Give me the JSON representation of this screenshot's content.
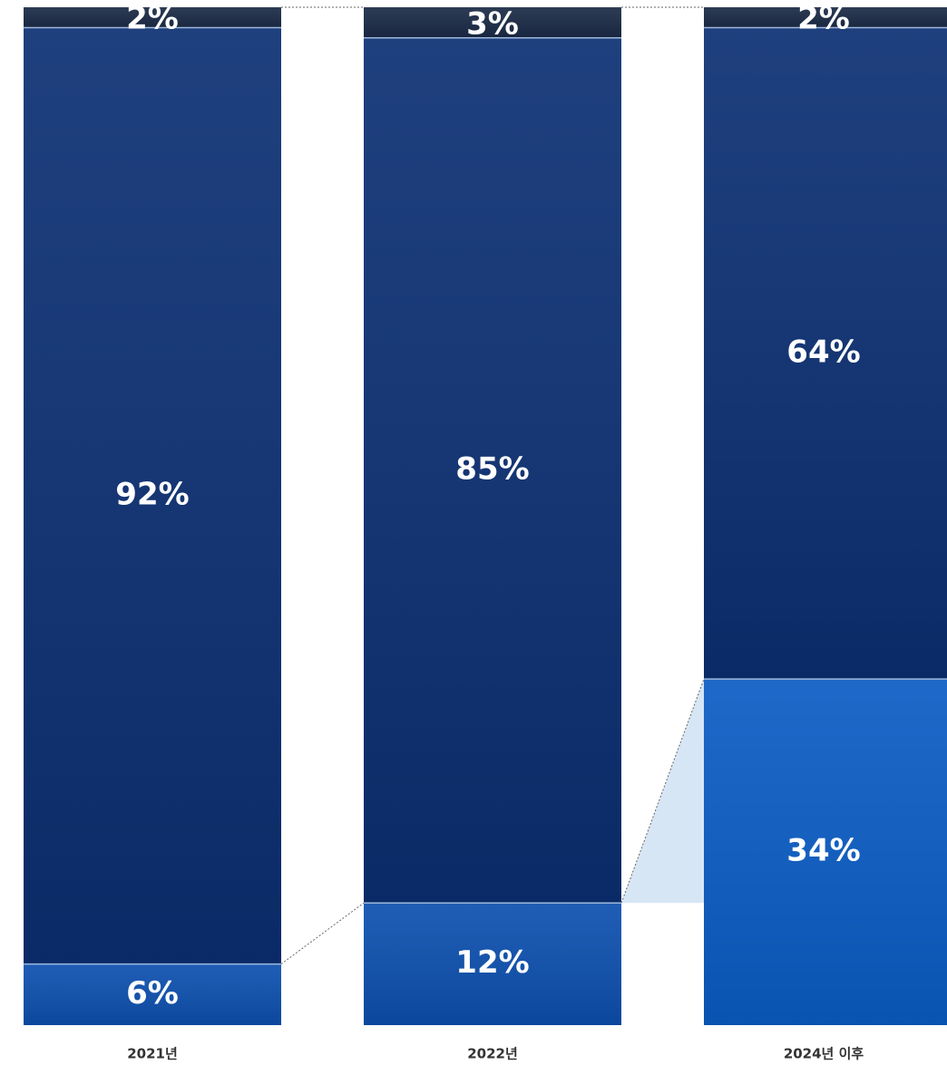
{
  "chart_data": {
    "type": "stacked-bar",
    "categories": [
      "2021년",
      "2022년",
      "2024년 이후"
    ],
    "series": [
      {
        "color": "#0c4fae",
        "values": [
          6,
          12,
          34
        ],
        "value_labels": [
          "6%",
          "12%",
          "34%"
        ]
      },
      {
        "color": "#0b2f72",
        "values": [
          92,
          85,
          64
        ],
        "value_labels": [
          "92%",
          "85%",
          "64%"
        ]
      },
      {
        "color": "#1a2a45",
        "values": [
          2,
          3,
          2
        ],
        "value_labels": [
          "2%",
          "3%",
          "2%"
        ]
      }
    ]
  }
}
